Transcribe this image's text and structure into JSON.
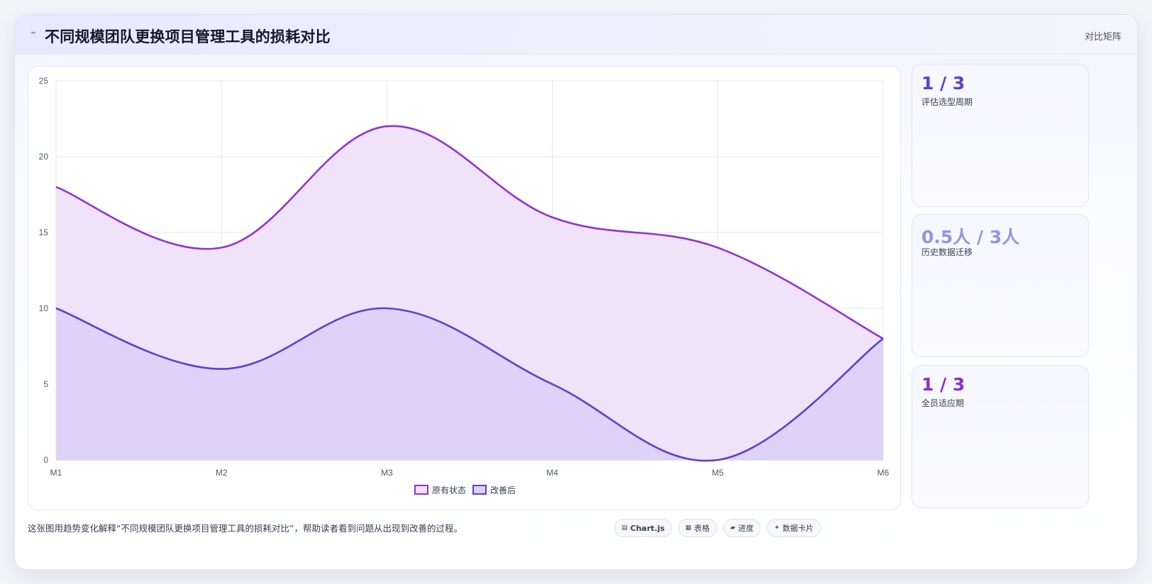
{
  "header": {
    "icon": "chart-icon",
    "title": "不同规模团队更换项目管理工具的损耗对比",
    "right_label": "对比矩阵"
  },
  "chart_data": {
    "type": "area",
    "x": [
      "M1",
      "M2",
      "M3",
      "M4",
      "M5",
      "M6"
    ],
    "ylim": [
      0,
      25
    ],
    "yticks": [
      0,
      5,
      10,
      15,
      20,
      25
    ],
    "grid": true,
    "legend_position": "bottom",
    "series": [
      {
        "name": "原有状态",
        "values": [
          18,
          14,
          22,
          16,
          14,
          8
        ],
        "line_color": "#9333d6",
        "fill_color": "#efe2f9"
      },
      {
        "name": "改善后",
        "values": [
          10,
          6,
          10,
          5,
          0,
          8
        ],
        "line_color": "#5b3fd6",
        "fill_color": "#dccff8"
      }
    ]
  },
  "stats": [
    {
      "value": "1 / 3",
      "label": "评估选型周期",
      "color": "#5b3fd6"
    },
    {
      "value": "0.5人 / 3人",
      "label": "历史数据迁移",
      "color": "#8d97e6"
    },
    {
      "value": "1 / 3",
      "label": "全员适应期",
      "color": "#8a2fd0"
    }
  ],
  "caption": "这张图用趋势变化解释“不同规模团队更换项目管理工具的损耗对比”，帮助读者看到问题从出现到改善的过程。",
  "tags": [
    {
      "icon": "▤",
      "label": "Chart.js"
    },
    {
      "icon": "▦",
      "label": "表格"
    },
    {
      "icon": "▰",
      "label": "进度"
    },
    {
      "icon": "✦",
      "label": "数据卡片"
    }
  ]
}
